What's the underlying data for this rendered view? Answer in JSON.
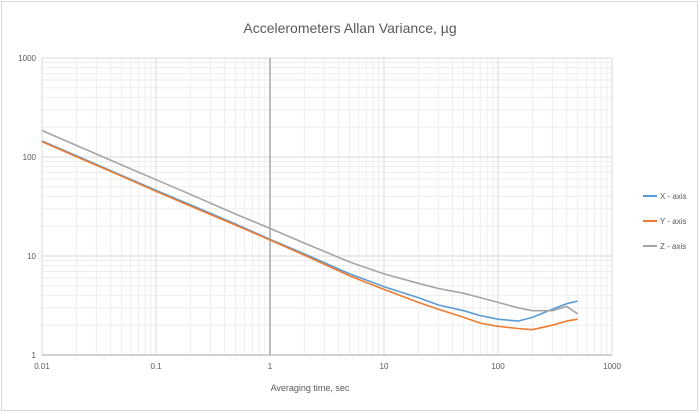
{
  "chart_data": {
    "type": "line",
    "title": "Accelerometers Allan Variance, µg",
    "xlabel": "Averaging time, sec",
    "ylabel": "",
    "xscale": "log",
    "yscale": "log",
    "xlim": [
      0.01,
      1000
    ],
    "ylim": [
      1,
      1000
    ],
    "x_ticks": [
      "0.01",
      "0.1",
      "1",
      "10",
      "100",
      "1000"
    ],
    "y_ticks": [
      "1",
      "10",
      "100",
      "1000"
    ],
    "grid": true,
    "legend": "right",
    "series": [
      {
        "name": "X - axis",
        "color": "#5b9bd5",
        "x": [
          0.01,
          0.02,
          0.05,
          0.1,
          0.2,
          0.5,
          1,
          2,
          5,
          10,
          20,
          30,
          50,
          70,
          100,
          150,
          200,
          300,
          400,
          500
        ],
        "y": [
          145,
          103,
          65,
          46,
          33,
          21,
          14.7,
          10.5,
          6.6,
          4.9,
          3.8,
          3.2,
          2.8,
          2.5,
          2.3,
          2.2,
          2.4,
          2.9,
          3.3,
          3.5
        ]
      },
      {
        "name": "Y - axis",
        "color": "#ed7d31",
        "x": [
          0.01,
          0.02,
          0.05,
          0.1,
          0.2,
          0.5,
          1,
          2,
          5,
          10,
          20,
          30,
          50,
          70,
          100,
          150,
          200,
          300,
          400,
          500
        ],
        "y": [
          143,
          101,
          64,
          45,
          32,
          20.5,
          14.5,
          10.2,
          6.3,
          4.6,
          3.4,
          2.9,
          2.4,
          2.1,
          1.95,
          1.85,
          1.8,
          2.0,
          2.2,
          2.3
        ]
      },
      {
        "name": "Z - axis",
        "color": "#a5a5a5",
        "x": [
          0.01,
          0.02,
          0.05,
          0.1,
          0.2,
          0.5,
          1,
          2,
          5,
          10,
          20,
          30,
          50,
          70,
          100,
          150,
          200,
          300,
          400,
          500
        ],
        "y": [
          185,
          131,
          83,
          59,
          42,
          26.5,
          19,
          13.5,
          8.7,
          6.6,
          5.3,
          4.7,
          4.2,
          3.8,
          3.4,
          3.0,
          2.8,
          2.8,
          3.1,
          2.6
        ]
      }
    ]
  }
}
